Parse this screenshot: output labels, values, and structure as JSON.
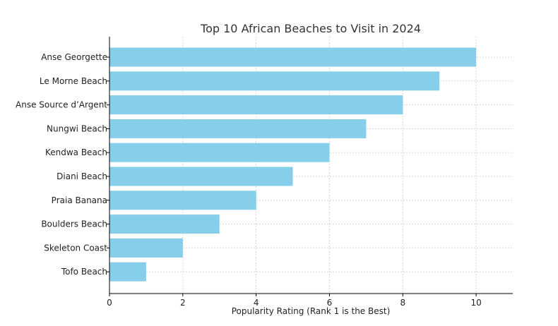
{
  "chart_data": {
    "type": "bar",
    "orientation": "horizontal",
    "title": "Top 10 African Beaches to Visit in 2024",
    "xlabel": "Popularity Rating (Rank 1 is the Best)",
    "ylabel": "",
    "categories": [
      "Anse Georgette",
      "Le Morne Beach",
      "Anse Source d’Argent",
      "Nungwi Beach",
      "Kendwa Beach",
      "Diani Beach",
      "Praia Banana",
      "Boulders Beach",
      "Skeleton Coast",
      "Tofo Beach"
    ],
    "values": [
      10,
      9,
      8,
      7,
      6,
      5,
      4,
      3,
      2,
      1
    ],
    "xlim": [
      0,
      11
    ],
    "xticks": [
      0,
      2,
      4,
      6,
      8,
      10
    ],
    "grid": true,
    "bar_color": "#87ceeb"
  }
}
